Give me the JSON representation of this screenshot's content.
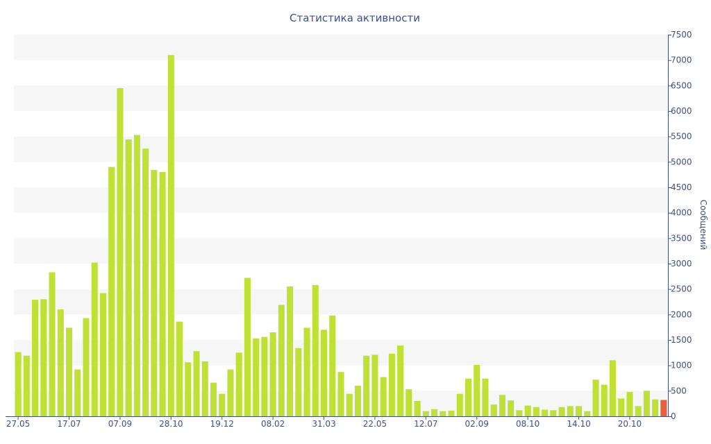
{
  "chart_data": {
    "type": "bar",
    "title": "Статистика активности",
    "xlabel": "",
    "ylabel": "Сообщений",
    "ylim": [
      0,
      7500
    ],
    "y_ticks": [
      0,
      500,
      1000,
      1500,
      2000,
      2500,
      3000,
      3500,
      4000,
      4500,
      5000,
      5500,
      6000,
      6500,
      7000,
      7500
    ],
    "y_axis_side": "right",
    "grid": "alternating horizontal bands",
    "x_tick_labels": [
      {
        "label": "27.05",
        "index": 0
      },
      {
        "label": "17.07",
        "index": 6
      },
      {
        "label": "07.09",
        "index": 12
      },
      {
        "label": "28.10",
        "index": 18
      },
      {
        "label": "19.12",
        "index": 24
      },
      {
        "label": "08.02",
        "index": 30
      },
      {
        "label": "31.03",
        "index": 36
      },
      {
        "label": "22.05",
        "index": 42
      },
      {
        "label": "12.07",
        "index": 48
      },
      {
        "label": "02.09",
        "index": 54
      },
      {
        "label": "08.10",
        "index": 60
      },
      {
        "label": "14.10",
        "index": 66
      },
      {
        "label": "20.10",
        "index": 72
      }
    ],
    "series": [
      {
        "color": "#bfe135",
        "values": [
          1260,
          1190,
          2290,
          2300,
          2830,
          2100,
          1740,
          920,
          1930,
          3020,
          2420,
          4900,
          6450,
          5440,
          5530,
          5260,
          4840,
          4800,
          7100,
          1860,
          1060,
          1280,
          1080,
          660,
          440,
          920,
          1250,
          2720,
          1530,
          1560,
          1650,
          2190,
          2550,
          1340,
          1740,
          2580,
          1700,
          1980,
          870,
          440,
          600,
          1190,
          1210,
          770,
          1230,
          1390,
          530,
          300,
          100,
          140,
          100,
          110,
          440,
          740,
          1010,
          740,
          230,
          420,
          310,
          120,
          210,
          180,
          130,
          120,
          180,
          200,
          200,
          100,
          720,
          620,
          1100,
          350,
          480,
          200,
          500,
          330,
          320
        ]
      }
    ],
    "highlight": {
      "index": 76,
      "color": "#e8613a",
      "value": 320
    }
  }
}
